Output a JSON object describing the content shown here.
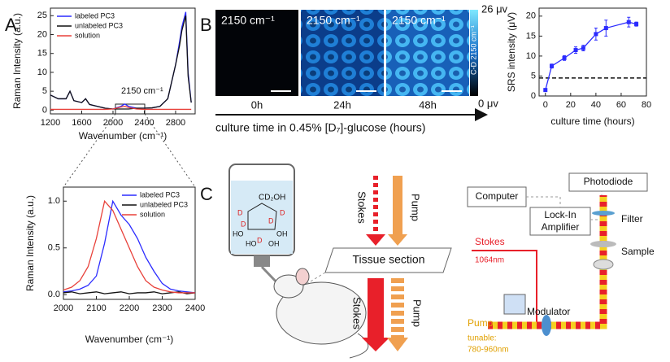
{
  "panel_labels": [
    "A",
    "B",
    "C"
  ],
  "chart_data": [
    {
      "type": "line",
      "xlabel": "Wavenumber (cm⁻¹)",
      "ylabel": "Raman Intensity (a.u.)",
      "annotation": "2150 cm⁻¹",
      "x": [
        1200,
        1300,
        1400,
        1450,
        1500,
        1600,
        1650,
        1700,
        1800,
        1900,
        2000,
        2100,
        2150,
        2200,
        2300,
        2400,
        2500,
        2600,
        2700,
        2800,
        2850,
        2880,
        2930,
        2960,
        3000
      ],
      "series": [
        {
          "name": "labeled PC3",
          "color": "#2b2bff",
          "values": [
            4,
            3,
            3,
            5,
            2.5,
            2,
            3,
            1.5,
            1,
            0.5,
            0.3,
            1,
            1.6,
            1,
            0.5,
            0.5,
            0.6,
            1,
            3,
            12,
            18,
            22,
            26,
            10,
            2
          ]
        },
        {
          "name": "unlabeled PC3",
          "color": "#111111",
          "values": [
            4,
            3,
            3,
            5,
            2.5,
            2,
            3,
            1.5,
            1,
            0.5,
            0.3,
            0.3,
            0.3,
            0.3,
            0.5,
            0.5,
            0.6,
            1,
            3,
            12,
            17,
            21,
            25,
            9,
            2
          ]
        },
        {
          "name": "solution",
          "color": "#e8413a",
          "values": [
            0.2,
            0.2,
            0.2,
            0.2,
            0.2,
            0.2,
            0.2,
            0.2,
            0.2,
            0.2,
            0.3,
            0.8,
            1,
            0.7,
            0.3,
            0.2,
            0.2,
            0.2,
            0.2,
            0.2,
            0.2,
            0.2,
            0.2,
            0.2,
            0.2
          ]
        }
      ],
      "xlim": [
        1200,
        3050
      ],
      "xticks": [
        1200,
        1600,
        2000,
        2400,
        2800
      ],
      "ylim": [
        -1,
        27
      ],
      "yticks": [
        0,
        5,
        10,
        15,
        20,
        25
      ],
      "legend": "upper left"
    },
    {
      "type": "line",
      "xlabel": "Wavenumber (cm⁻¹)",
      "ylabel": "Raman Intensity (a.u.)",
      "x": [
        2000,
        2025,
        2050,
        2075,
        2100,
        2125,
        2150,
        2175,
        2200,
        2225,
        2250,
        2275,
        2300,
        2325,
        2350,
        2375,
        2400
      ],
      "series": [
        {
          "name": "labeled PC3",
          "color": "#2b2bff",
          "values": [
            0.03,
            0.04,
            0.06,
            0.1,
            0.2,
            0.55,
            1.0,
            0.85,
            0.75,
            0.6,
            0.4,
            0.25,
            0.12,
            0.06,
            0.04,
            0.03,
            0.02
          ]
        },
        {
          "name": "unlabeled PC3",
          "color": "#111111",
          "values": [
            0.02,
            0.03,
            0.01,
            0.02,
            0.03,
            0.01,
            0.02,
            0.03,
            0.01,
            0.02,
            0.02,
            0.03,
            0.01,
            0.02,
            0.03,
            0.01,
            0.02
          ]
        },
        {
          "name": "solution",
          "color": "#e8413a",
          "values": [
            0.05,
            0.08,
            0.15,
            0.3,
            0.6,
            1.0,
            0.9,
            0.7,
            0.5,
            0.3,
            0.15,
            0.08,
            0.05,
            0.03,
            0.02,
            0.02,
            0.02
          ]
        }
      ],
      "xlim": [
        2000,
        2400
      ],
      "xticks": [
        2000,
        2100,
        2200,
        2300,
        2400
      ],
      "ylim": [
        -0.05,
        1.15
      ],
      "yticks": [
        {
          "value": 0,
          "label": "0.0"
        },
        0.5,
        {
          "value": 1,
          "label": "1.0"
        }
      ],
      "legend": "upper right"
    },
    {
      "type": "errorbar",
      "xlabel": "culture time (hours)",
      "ylabel": "SRS intensity (μV)",
      "x": [
        0,
        5,
        15,
        24,
        30,
        40,
        48,
        66,
        72
      ],
      "series": [
        {
          "color": "#2b2bff",
          "values": [
            1.5,
            7.5,
            9.5,
            11.5,
            12,
            15.5,
            17,
            18.5,
            18
          ],
          "errors": [
            0.3,
            0.5,
            0.6,
            0.8,
            0.7,
            1.5,
            2,
            1.2,
            0.5
          ]
        }
      ],
      "reference_line": 4.5,
      "xlim": [
        -5,
        80
      ],
      "xticks": [
        0,
        20,
        40,
        60,
        80
      ],
      "ylim": [
        0,
        22
      ],
      "yticks": [
        0,
        5,
        10,
        15,
        20
      ]
    }
  ],
  "images": {
    "labels": [
      "2150 cm⁻¹",
      "2150 cm⁻¹",
      "2150 cm⁻¹"
    ],
    "times": [
      "0h",
      "24h",
      "48h"
    ],
    "colorbar_max": "26 μv",
    "colorbar_min": "0 μv",
    "colorbar_label": "C-D 2150 cm⁻¹",
    "axis_label": "culture time in 0.45% [D₇]-glucose (hours)"
  },
  "diagram": {
    "molecule": {
      "group": "CD₂OH",
      "deuterium": [
        "D",
        "D",
        "D",
        "D",
        "D"
      ],
      "hydroxyls": [
        "HO",
        "HO",
        "OH",
        "OH"
      ]
    },
    "beams_top": [
      "Stokes",
      "Pump"
    ],
    "tissue": "Tissue section",
    "beams_bottom": [
      "Stokes",
      "Pump"
    ],
    "setup": {
      "computer": "Computer",
      "photodiode": "Photodiode",
      "lockin": [
        "Lock-In",
        "Amplifier"
      ],
      "filter": "Filter",
      "sample": "Sample",
      "stokes": "Stokes",
      "stokes_wl": "1064nm",
      "modulator": "Modulator",
      "pump": "Pump",
      "pump_tunable": "tunable:",
      "pump_wl": "780-960nm"
    }
  }
}
